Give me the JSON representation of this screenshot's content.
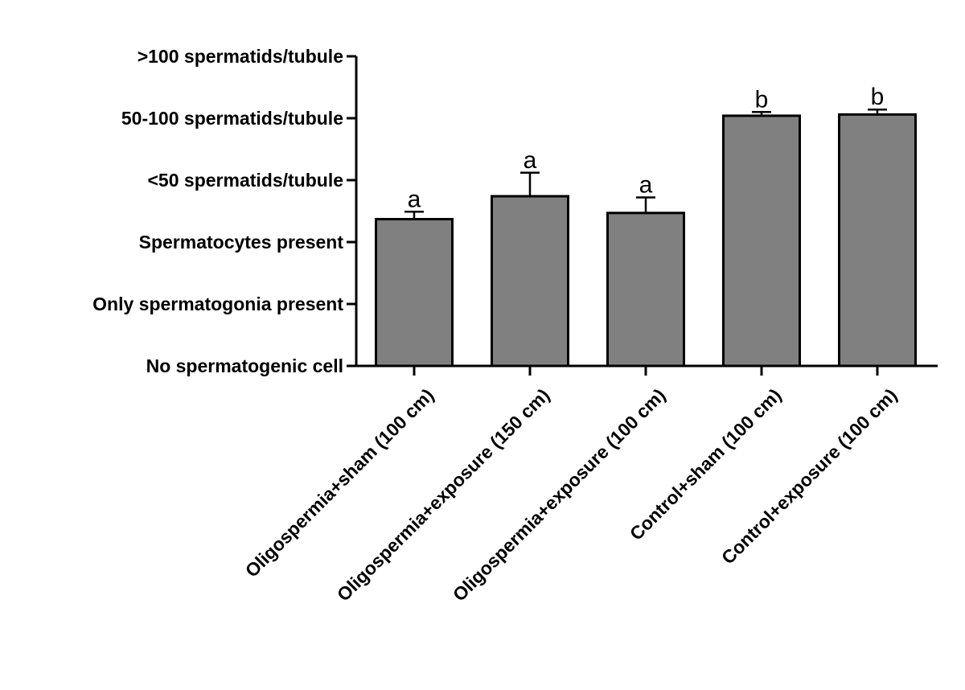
{
  "chart_data": {
    "type": "bar",
    "title": "",
    "xlabel": "",
    "ylabel": "",
    "y_tick_labels": [
      "No spermatogenic cell",
      "Only spermatogonia present",
      "Spermatocytes present",
      "<50 spermatids/tubule",
      "50-100 spermatids/tubule",
      ">100 spermatids/tubule"
    ],
    "y_tick_values": [
      0,
      1,
      2,
      3,
      4,
      5
    ],
    "ylim": [
      0,
      5
    ],
    "categories": [
      "Oligospermia+sham (100 cm)",
      "Oligospermia+exposure (150 cm)",
      "Oligospermia+exposure (100 cm)",
      "Control+sham (100 cm)",
      "Control+exposure (100 cm)"
    ],
    "values": [
      2.37,
      2.74,
      2.47,
      4.04,
      4.06
    ],
    "errors": [
      0.12,
      0.38,
      0.25,
      0.06,
      0.08
    ],
    "significance_labels": [
      "a",
      "a",
      "a",
      "b",
      "b"
    ],
    "bar_color": "#808080",
    "grid": false,
    "legend": "none"
  }
}
